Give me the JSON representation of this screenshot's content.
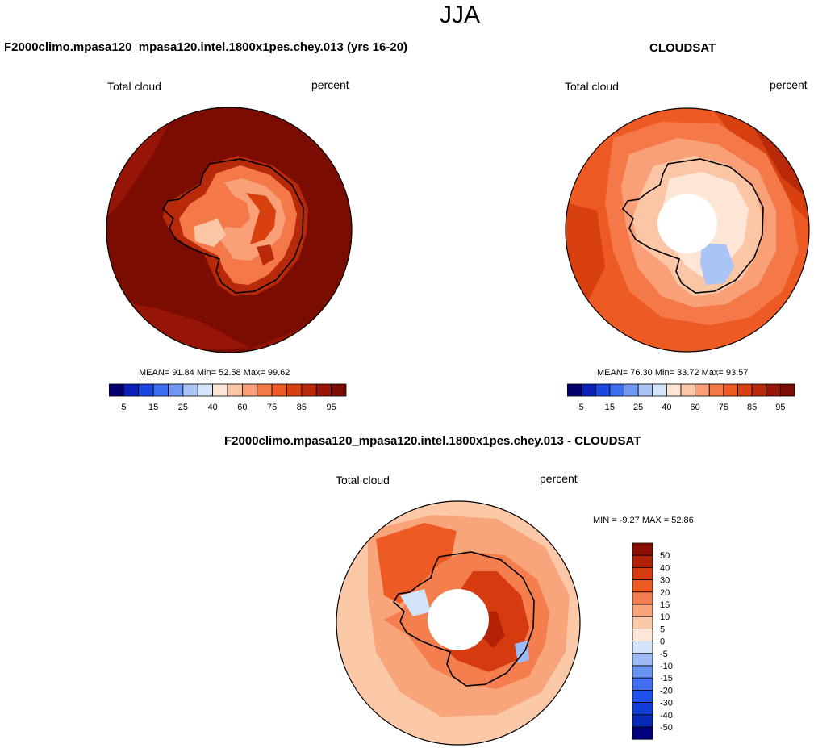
{
  "season": "JJA",
  "colors": {
    "abs_scale": [
      "#03006e",
      "#0a1fb8",
      "#1a46e0",
      "#3d6ef0",
      "#7098f2",
      "#a9c4f5",
      "#d4e4fa",
      "#fde6d6",
      "#fbc6a6",
      "#f9a079",
      "#f57848",
      "#ee5a23",
      "#d8400f",
      "#b8290a",
      "#961506",
      "#7a0c02"
    ],
    "diff_scale": [
      "#030080",
      "#082ab8",
      "#0f3fd8",
      "#1f52e8",
      "#4070f0",
      "#6a92f3",
      "#9db9f6",
      "#d2e3fa",
      "#fde6d6",
      "#fbc8a8",
      "#f9a57c",
      "#f47e4e",
      "#ee5a23",
      "#d63b10",
      "#b42206",
      "#8a0f02"
    ]
  },
  "panels": [
    {
      "title": "F2000climo.mpasa120_mpasa120.intel.1800x1pes.chey.013 (yrs 16-20)",
      "left_label": "Total cloud",
      "right_label": "percent",
      "stats": "MEAN=  91.84  Min=  52.58  Max=  99.62"
    },
    {
      "title": "CLOUDSAT",
      "left_label": "Total cloud",
      "right_label": "percent",
      "stats": "MEAN=  76.30  Min=  33.72  Max=  93.57"
    }
  ],
  "diff_panel": {
    "title": "F2000climo.mpasa120_mpasa120.intel.1800x1pes.chey.013 - CLOUDSAT",
    "left_label": "Total cloud",
    "right_label": "percent",
    "stats": "MIN =  -9.27 MAX =  52.86"
  },
  "chart_data": [
    {
      "type": "heatmap",
      "projection": "south-polar-stereographic",
      "title": "F2000climo.mpasa120_mpasa120.intel.1800x1pes.chey.013 (yrs 16-20)",
      "variable": "Total cloud",
      "units": "percent",
      "mean": 91.84,
      "min": 52.58,
      "max": 99.62,
      "colorbar_levels": [
        5,
        10,
        15,
        20,
        25,
        30,
        40,
        50,
        60,
        70,
        75,
        80,
        85,
        90,
        95
      ],
      "colorbar_tick_labels": [
        "5",
        "15",
        "25",
        "40",
        "60",
        "75",
        "85",
        "95"
      ]
    },
    {
      "type": "heatmap",
      "projection": "south-polar-stereographic",
      "title": "CLOUDSAT",
      "variable": "Total cloud",
      "units": "percent",
      "mean": 76.3,
      "min": 33.72,
      "max": 93.57,
      "colorbar_levels": [
        5,
        10,
        15,
        20,
        25,
        30,
        40,
        50,
        60,
        70,
        75,
        80,
        85,
        90,
        95
      ],
      "colorbar_tick_labels": [
        "5",
        "15",
        "25",
        "40",
        "60",
        "75",
        "85",
        "95"
      ]
    },
    {
      "type": "heatmap",
      "projection": "south-polar-stereographic",
      "title": "F2000climo.mpasa120_mpasa120.intel.1800x1pes.chey.013 - CLOUDSAT",
      "variable": "Total cloud",
      "units": "percent",
      "min": -9.27,
      "max": 52.86,
      "colorbar_levels": [
        50,
        40,
        30,
        20,
        15,
        10,
        5,
        0,
        -5,
        -10,
        -15,
        -20,
        -30,
        -40,
        -50
      ],
      "colorbar_tick_labels": [
        "50",
        "40",
        "30",
        "20",
        "15",
        "10",
        "5",
        "0",
        "-5",
        "-10",
        "-15",
        "-20",
        "-30",
        "-40",
        "-50"
      ]
    }
  ]
}
